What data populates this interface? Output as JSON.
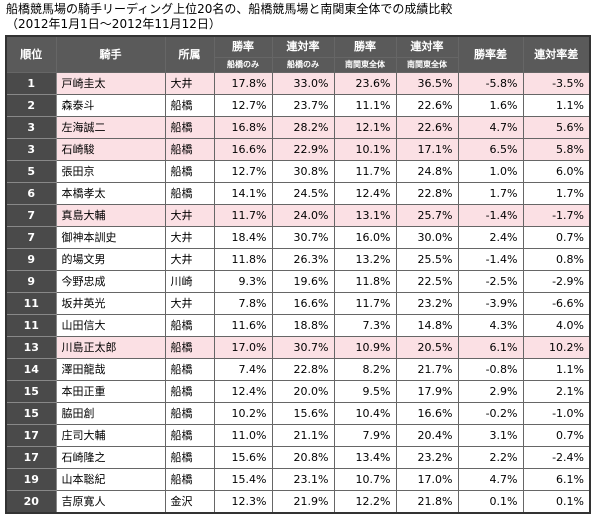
{
  "caption": {
    "line1": "船橋競馬場の騎手リーディング上位20名の、船橋競馬場と南関東全体での成績比較",
    "line2": "（2012年1月1日〜2012年11月12日）"
  },
  "headers": {
    "rank": "順位",
    "jockey": "騎手",
    "affiliation": "所属",
    "win_rate": "勝率",
    "place_rate": "連対率",
    "win_rate_diff": "勝率差",
    "place_rate_diff": "連対率差",
    "funabashi_only": "船橋のみ",
    "minami_kanto_all": "南関東全体"
  },
  "rows": [
    {
      "rank": "1",
      "name": "戸崎圭太",
      "aff": "大井",
      "fw": "17.8%",
      "fp": "33.0%",
      "aw": "23.6%",
      "ap": "36.5%",
      "dw": "-5.8%",
      "dp": "-3.5%",
      "hl": true
    },
    {
      "rank": "2",
      "name": "森泰斗",
      "aff": "船橋",
      "fw": "12.7%",
      "fp": "23.7%",
      "aw": "11.1%",
      "ap": "22.6%",
      "dw": "1.6%",
      "dp": "1.1%",
      "hl": false
    },
    {
      "rank": "3",
      "name": "左海誠二",
      "aff": "船橋",
      "fw": "16.8%",
      "fp": "28.2%",
      "aw": "12.1%",
      "ap": "22.6%",
      "dw": "4.7%",
      "dp": "5.6%",
      "hl": true
    },
    {
      "rank": "3",
      "name": "石崎駿",
      "aff": "船橋",
      "fw": "16.6%",
      "fp": "22.9%",
      "aw": "10.1%",
      "ap": "17.1%",
      "dw": "6.5%",
      "dp": "5.8%",
      "hl": true
    },
    {
      "rank": "5",
      "name": "張田京",
      "aff": "船橋",
      "fw": "12.7%",
      "fp": "30.8%",
      "aw": "11.7%",
      "ap": "24.8%",
      "dw": "1.0%",
      "dp": "6.0%",
      "hl": false
    },
    {
      "rank": "6",
      "name": "本橋孝太",
      "aff": "船橋",
      "fw": "14.1%",
      "fp": "24.5%",
      "aw": "12.4%",
      "ap": "22.8%",
      "dw": "1.7%",
      "dp": "1.7%",
      "hl": false
    },
    {
      "rank": "7",
      "name": "真島大輔",
      "aff": "大井",
      "fw": "11.7%",
      "fp": "24.0%",
      "aw": "13.1%",
      "ap": "25.7%",
      "dw": "-1.4%",
      "dp": "-1.7%",
      "hl": true
    },
    {
      "rank": "7",
      "name": "御神本訓史",
      "aff": "大井",
      "fw": "18.4%",
      "fp": "30.7%",
      "aw": "16.0%",
      "ap": "30.0%",
      "dw": "2.4%",
      "dp": "0.7%",
      "hl": false
    },
    {
      "rank": "9",
      "name": "的場文男",
      "aff": "大井",
      "fw": "11.8%",
      "fp": "26.3%",
      "aw": "13.2%",
      "ap": "25.5%",
      "dw": "-1.4%",
      "dp": "0.8%",
      "hl": false
    },
    {
      "rank": "9",
      "name": "今野忠成",
      "aff": "川崎",
      "fw": "9.3%",
      "fp": "19.6%",
      "aw": "11.8%",
      "ap": "22.5%",
      "dw": "-2.5%",
      "dp": "-2.9%",
      "hl": false
    },
    {
      "rank": "11",
      "name": "坂井英光",
      "aff": "大井",
      "fw": "7.8%",
      "fp": "16.6%",
      "aw": "11.7%",
      "ap": "23.2%",
      "dw": "-3.9%",
      "dp": "-6.6%",
      "hl": false
    },
    {
      "rank": "11",
      "name": "山田信大",
      "aff": "船橋",
      "fw": "11.6%",
      "fp": "18.8%",
      "aw": "7.3%",
      "ap": "14.8%",
      "dw": "4.3%",
      "dp": "4.0%",
      "hl": false
    },
    {
      "rank": "13",
      "name": "川島正太郎",
      "aff": "船橋",
      "fw": "17.0%",
      "fp": "30.7%",
      "aw": "10.9%",
      "ap": "20.5%",
      "dw": "6.1%",
      "dp": "10.2%",
      "hl": true
    },
    {
      "rank": "14",
      "name": "澤田龍哉",
      "aff": "船橋",
      "fw": "7.4%",
      "fp": "22.8%",
      "aw": "8.2%",
      "ap": "21.7%",
      "dw": "-0.8%",
      "dp": "1.1%",
      "hl": false
    },
    {
      "rank": "15",
      "name": "本田正重",
      "aff": "船橋",
      "fw": "12.4%",
      "fp": "20.0%",
      "aw": "9.5%",
      "ap": "17.9%",
      "dw": "2.9%",
      "dp": "2.1%",
      "hl": false
    },
    {
      "rank": "15",
      "name": "脇田創",
      "aff": "船橋",
      "fw": "10.2%",
      "fp": "15.6%",
      "aw": "10.4%",
      "ap": "16.6%",
      "dw": "-0.2%",
      "dp": "-1.0%",
      "hl": false
    },
    {
      "rank": "17",
      "name": "庄司大輔",
      "aff": "船橋",
      "fw": "11.0%",
      "fp": "21.1%",
      "aw": "7.9%",
      "ap": "20.4%",
      "dw": "3.1%",
      "dp": "0.7%",
      "hl": false
    },
    {
      "rank": "17",
      "name": "石崎隆之",
      "aff": "船橋",
      "fw": "15.6%",
      "fp": "20.8%",
      "aw": "13.4%",
      "ap": "23.2%",
      "dw": "2.2%",
      "dp": "-2.4%",
      "hl": false
    },
    {
      "rank": "19",
      "name": "山本聡紀",
      "aff": "船橋",
      "fw": "15.4%",
      "fp": "23.1%",
      "aw": "10.7%",
      "ap": "17.0%",
      "dw": "4.7%",
      "dp": "6.1%",
      "hl": false
    },
    {
      "rank": "20",
      "name": "吉原寛人",
      "aff": "金沢",
      "fw": "12.3%",
      "fp": "21.9%",
      "aw": "12.2%",
      "ap": "21.8%",
      "dw": "0.1%",
      "dp": "0.1%",
      "hl": false
    }
  ]
}
